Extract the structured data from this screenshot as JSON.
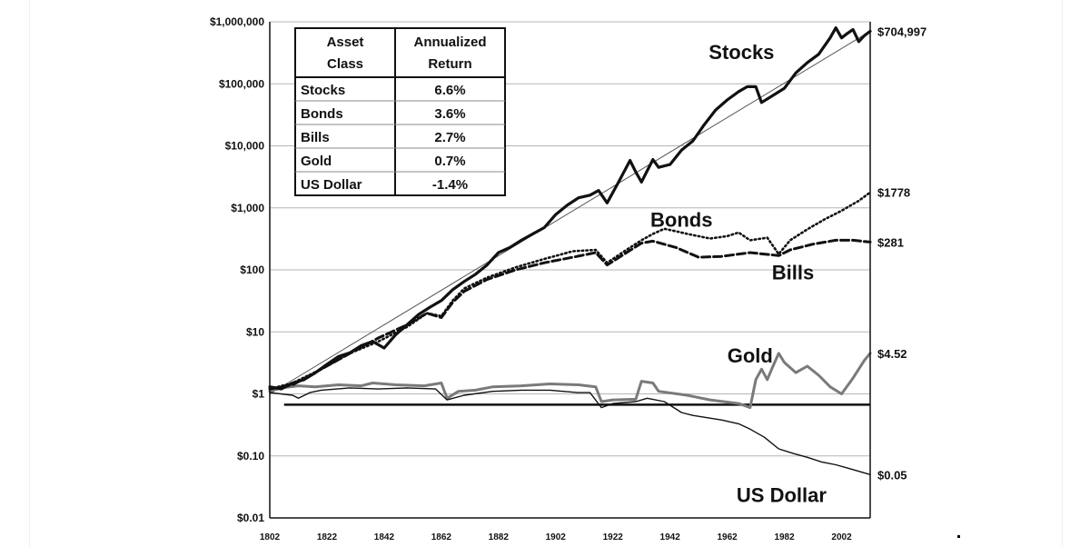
{
  "chart_data": {
    "type": "line",
    "y_scale": "log",
    "ylim": [
      0.01,
      1000000
    ],
    "xlim": [
      1802,
      2012
    ],
    "y_tick_labels": [
      "$1,000,000",
      "$100,000",
      "$10,000",
      "$1,000",
      "$100",
      "$10",
      "$1",
      "$0.10",
      "$0.01"
    ],
    "y_tick_values": [
      1000000,
      100000,
      10000,
      1000,
      100,
      10,
      1,
      0.1,
      0.01
    ],
    "x_tick_labels": [
      "1802",
      "1822",
      "1842",
      "1862",
      "1882",
      "1902",
      "1922",
      "1942",
      "1962",
      "1982",
      "2002"
    ],
    "x_tick_values": [
      1802,
      1822,
      1842,
      1862,
      1882,
      1902,
      1922,
      1942,
      1962,
      1982,
      2002
    ],
    "grid": "horizontal",
    "series": [
      {
        "name": "Stocks",
        "style": "solid-thick",
        "color": "#111111",
        "end_label": "$704,997",
        "points": [
          [
            1802,
            1.3
          ],
          [
            1806,
            1.2
          ],
          [
            1810,
            1.5
          ],
          [
            1814,
            1.7
          ],
          [
            1818,
            2.2
          ],
          [
            1822,
            3
          ],
          [
            1826,
            4
          ],
          [
            1830,
            4.6
          ],
          [
            1834,
            6
          ],
          [
            1838,
            7
          ],
          [
            1842,
            5.5
          ],
          [
            1846,
            9
          ],
          [
            1850,
            13
          ],
          [
            1854,
            19
          ],
          [
            1858,
            25
          ],
          [
            1862,
            32
          ],
          [
            1866,
            48
          ],
          [
            1870,
            65
          ],
          [
            1874,
            85
          ],
          [
            1878,
            120
          ],
          [
            1882,
            190
          ],
          [
            1886,
            230
          ],
          [
            1890,
            300
          ],
          [
            1894,
            380
          ],
          [
            1898,
            480
          ],
          [
            1902,
            780
          ],
          [
            1906,
            1100
          ],
          [
            1910,
            1450
          ],
          [
            1914,
            1600
          ],
          [
            1917,
            1900
          ],
          [
            1920,
            1200
          ],
          [
            1924,
            2600
          ],
          [
            1928,
            5800
          ],
          [
            1930,
            3800
          ],
          [
            1932,
            2600
          ],
          [
            1936,
            6000
          ],
          [
            1938,
            4500
          ],
          [
            1942,
            5000
          ],
          [
            1946,
            8500
          ],
          [
            1950,
            12000
          ],
          [
            1954,
            22000
          ],
          [
            1958,
            38000
          ],
          [
            1962,
            55000
          ],
          [
            1966,
            75000
          ],
          [
            1969,
            90000
          ],
          [
            1972,
            90000
          ],
          [
            1974,
            50000
          ],
          [
            1978,
            65000
          ],
          [
            1982,
            85000
          ],
          [
            1986,
            150000
          ],
          [
            1990,
            220000
          ],
          [
            1994,
            300000
          ],
          [
            1998,
            550000
          ],
          [
            2000,
            800000
          ],
          [
            2002,
            550000
          ],
          [
            2004,
            650000
          ],
          [
            2006,
            750000
          ],
          [
            2008,
            480000
          ],
          [
            2010,
            600000
          ],
          [
            2012,
            704997
          ]
        ]
      },
      {
        "name": "Bonds",
        "style": "dotted",
        "color": "#111111",
        "end_label": "$1778",
        "points": [
          [
            1802,
            1.2
          ],
          [
            1810,
            1.5
          ],
          [
            1820,
            2.5
          ],
          [
            1830,
            4.5
          ],
          [
            1840,
            7
          ],
          [
            1850,
            12
          ],
          [
            1857,
            20
          ],
          [
            1862,
            18
          ],
          [
            1866,
            32
          ],
          [
            1870,
            50
          ],
          [
            1878,
            75
          ],
          [
            1888,
            110
          ],
          [
            1898,
            150
          ],
          [
            1908,
            200
          ],
          [
            1916,
            210
          ],
          [
            1920,
            130
          ],
          [
            1926,
            200
          ],
          [
            1932,
            300
          ],
          [
            1936,
            380
          ],
          [
            1940,
            460
          ],
          [
            1944,
            420
          ],
          [
            1948,
            380
          ],
          [
            1956,
            320
          ],
          [
            1962,
            350
          ],
          [
            1966,
            400
          ],
          [
            1970,
            300
          ],
          [
            1976,
            330
          ],
          [
            1980,
            180
          ],
          [
            1984,
            300
          ],
          [
            1990,
            450
          ],
          [
            1996,
            650
          ],
          [
            2002,
            900
          ],
          [
            2008,
            1300
          ],
          [
            2012,
            1778
          ]
        ]
      },
      {
        "name": "Bills",
        "style": "dashed",
        "color": "#111111",
        "end_label": "$281",
        "points": [
          [
            1802,
            1.2
          ],
          [
            1810,
            1.4
          ],
          [
            1820,
            2.5
          ],
          [
            1830,
            4.5
          ],
          [
            1840,
            8
          ],
          [
            1850,
            13
          ],
          [
            1857,
            20
          ],
          [
            1862,
            17
          ],
          [
            1866,
            30
          ],
          [
            1870,
            45
          ],
          [
            1878,
            70
          ],
          [
            1888,
            100
          ],
          [
            1898,
            130
          ],
          [
            1908,
            160
          ],
          [
            1916,
            190
          ],
          [
            1920,
            120
          ],
          [
            1926,
            180
          ],
          [
            1932,
            270
          ],
          [
            1936,
            290
          ],
          [
            1944,
            230
          ],
          [
            1952,
            160
          ],
          [
            1960,
            165
          ],
          [
            1970,
            190
          ],
          [
            1980,
            170
          ],
          [
            1984,
            210
          ],
          [
            1992,
            260
          ],
          [
            2000,
            300
          ],
          [
            2006,
            300
          ],
          [
            2012,
            281
          ]
        ]
      },
      {
        "name": "Gold",
        "style": "solid-gray",
        "color": "#7a7a7a",
        "end_label": "$4.52",
        "points": [
          [
            1802,
            1.1
          ],
          [
            1806,
            1.25
          ],
          [
            1812,
            1.35
          ],
          [
            1818,
            1.3
          ],
          [
            1826,
            1.4
          ],
          [
            1834,
            1.35
          ],
          [
            1838,
            1.5
          ],
          [
            1846,
            1.4
          ],
          [
            1856,
            1.35
          ],
          [
            1862,
            1.5
          ],
          [
            1864,
            0.85
          ],
          [
            1868,
            1.1
          ],
          [
            1874,
            1.15
          ],
          [
            1880,
            1.3
          ],
          [
            1890,
            1.35
          ],
          [
            1900,
            1.45
          ],
          [
            1910,
            1.4
          ],
          [
            1916,
            1.3
          ],
          [
            1918,
            0.75
          ],
          [
            1922,
            0.8
          ],
          [
            1930,
            0.82
          ],
          [
            1932,
            1.6
          ],
          [
            1936,
            1.5
          ],
          [
            1938,
            1.1
          ],
          [
            1948,
            0.95
          ],
          [
            1956,
            0.8
          ],
          [
            1966,
            0.7
          ],
          [
            1970,
            0.6
          ],
          [
            1972,
            1.7
          ],
          [
            1974,
            2.5
          ],
          [
            1976,
            1.7
          ],
          [
            1978,
            2.8
          ],
          [
            1980,
            4.5
          ],
          [
            1982,
            3.2
          ],
          [
            1986,
            2.2
          ],
          [
            1990,
            2.8
          ],
          [
            1994,
            2.0
          ],
          [
            1998,
            1.3
          ],
          [
            2002,
            1.0
          ],
          [
            2006,
            1.8
          ],
          [
            2010,
            3.5
          ],
          [
            2012,
            4.52
          ]
        ]
      },
      {
        "name": "US Dollar",
        "style": "solid-thin",
        "color": "#111111",
        "end_label": "$0.05",
        "points": [
          [
            1802,
            1.05
          ],
          [
            1810,
            0.95
          ],
          [
            1812,
            0.85
          ],
          [
            1816,
            1.05
          ],
          [
            1820,
            1.15
          ],
          [
            1830,
            1.25
          ],
          [
            1840,
            1.2
          ],
          [
            1850,
            1.25
          ],
          [
            1860,
            1.2
          ],
          [
            1864,
            0.8
          ],
          [
            1870,
            0.95
          ],
          [
            1880,
            1.1
          ],
          [
            1890,
            1.15
          ],
          [
            1900,
            1.15
          ],
          [
            1910,
            1.05
          ],
          [
            1914,
            1.05
          ],
          [
            1918,
            0.6
          ],
          [
            1922,
            0.7
          ],
          [
            1930,
            0.75
          ],
          [
            1934,
            0.85
          ],
          [
            1940,
            0.75
          ],
          [
            1946,
            0.5
          ],
          [
            1950,
            0.45
          ],
          [
            1960,
            0.38
          ],
          [
            1966,
            0.33
          ],
          [
            1970,
            0.27
          ],
          [
            1975,
            0.2
          ],
          [
            1980,
            0.13
          ],
          [
            1985,
            0.11
          ],
          [
            1990,
            0.095
          ],
          [
            1995,
            0.08
          ],
          [
            2000,
            0.072
          ],
          [
            2005,
            0.062
          ],
          [
            2012,
            0.05
          ]
        ]
      }
    ],
    "reference_line": {
      "x_from": 1807,
      "x_to": 2012,
      "y": 0.67
    },
    "trend_line": {
      "from": [
        1802,
        1.0
      ],
      "to": [
        2012,
        704997
      ]
    },
    "inline_labels": [
      {
        "text": "Stocks",
        "x": 1967,
        "y": 250000
      },
      {
        "text": "Bonds",
        "x": 1946,
        "y": 500
      },
      {
        "text": "Bills",
        "x": 1985,
        "y": 70
      },
      {
        "text": "Gold",
        "x": 1970,
        "y": 3.2
      },
      {
        "text": "US Dollar",
        "x": 1981,
        "y": 0.018
      }
    ],
    "table": {
      "headers": [
        [
          "Asset",
          "Class"
        ],
        [
          "Annualized",
          "Return"
        ]
      ],
      "rows": [
        [
          "Stocks",
          "6.6%"
        ],
        [
          "Bonds",
          "3.6%"
        ],
        [
          "Bills",
          "2.7%"
        ],
        [
          "Gold",
          "0.7%"
        ],
        [
          "US Dollar",
          "-1.4%"
        ]
      ]
    }
  }
}
